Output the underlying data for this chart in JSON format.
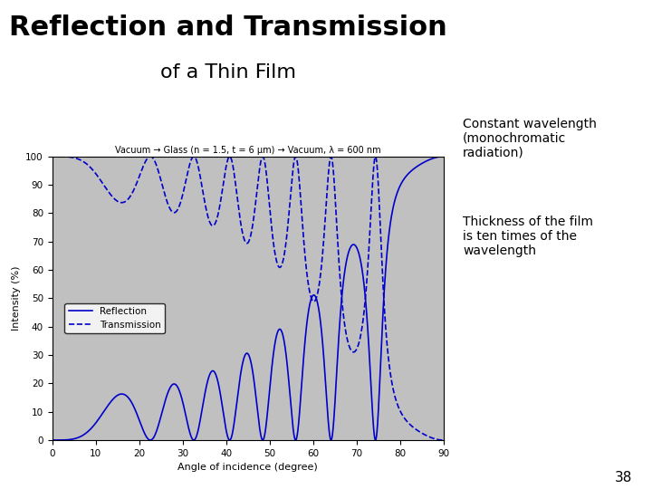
{
  "title_line1": "Reflection and Transmission",
  "title_line2": "of a Thin Film",
  "subtitle": "Vacuum → Glass (n = 1.5, t = 6 μm) → Vacuum, λ = 600 nm",
  "xlabel": "Angle of incidence (degree)",
  "ylabel": "Intensity (%)",
  "legend_reflection": "Reflection",
  "legend_transmission": "Transmission",
  "annotation1": "Constant wavelength\n(monochromatic\nradiation)",
  "annotation2": "Thickness of the film\nis ten times of the\nwavelength",
  "n_film": 1.5,
  "n_vacuum": 1.0,
  "t_um": 6.0,
  "lambda_nm": 600,
  "xlim": [
    0,
    90
  ],
  "ylim": [
    0,
    100
  ],
  "xticks": [
    0,
    10,
    20,
    30,
    40,
    50,
    60,
    70,
    80,
    90
  ],
  "yticks": [
    0,
    10,
    20,
    30,
    40,
    50,
    60,
    70,
    80,
    90,
    100
  ],
  "line_color": "#0000CC",
  "plot_bg_color": "#C0C0C0",
  "fig_bg_color": "#FFFFFF",
  "page_number": "38",
  "title1_fontsize": 22,
  "title2_fontsize": 16,
  "annotation_fontsize": 10
}
